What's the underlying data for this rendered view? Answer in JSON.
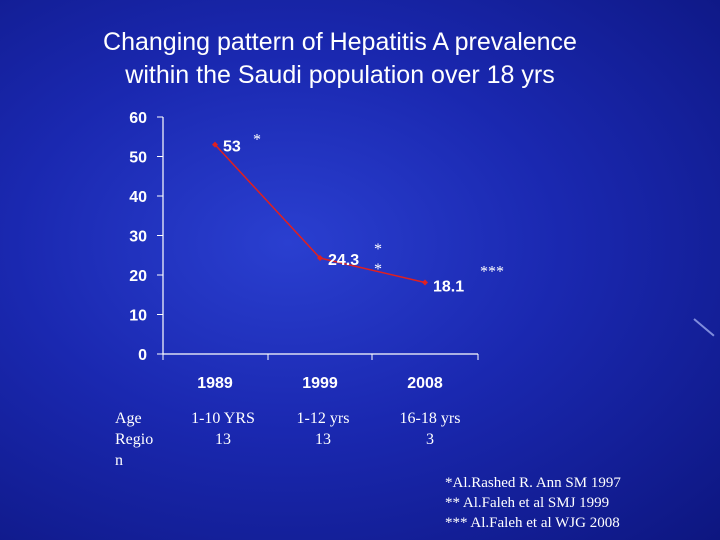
{
  "title": {
    "line1": "Changing pattern of Hepatitis A prevalence",
    "line2": "within the Saudi population over 18 yrs"
  },
  "chart_data": {
    "type": "line",
    "categories": [
      "1989",
      "1999",
      "2008"
    ],
    "values": [
      53,
      24.3,
      18.1
    ],
    "data_labels": [
      "53",
      "24.3",
      "18.1"
    ],
    "annotations": [
      "*",
      "*\n*",
      "***"
    ],
    "y_ticks": [
      "0",
      "10",
      "20",
      "30",
      "40",
      "50",
      "60"
    ],
    "ylim": [
      0,
      60
    ],
    "series_color": "#e02020"
  },
  "age_table": {
    "label": "Age Region",
    "label_lines": [
      "Age",
      "Regio",
      "n"
    ],
    "columns": [
      {
        "age": "1-10 YRS",
        "region": "13"
      },
      {
        "age": "1-12 yrs",
        "region": "13"
      },
      {
        "age": "16-18 yrs",
        "region": "3"
      }
    ]
  },
  "references": [
    "*Al.Rashed  R.  Ann SM 1997",
    "** Al.Faleh  et al SMJ 1999",
    "*** Al.Faleh et al  WJG 2008"
  ]
}
